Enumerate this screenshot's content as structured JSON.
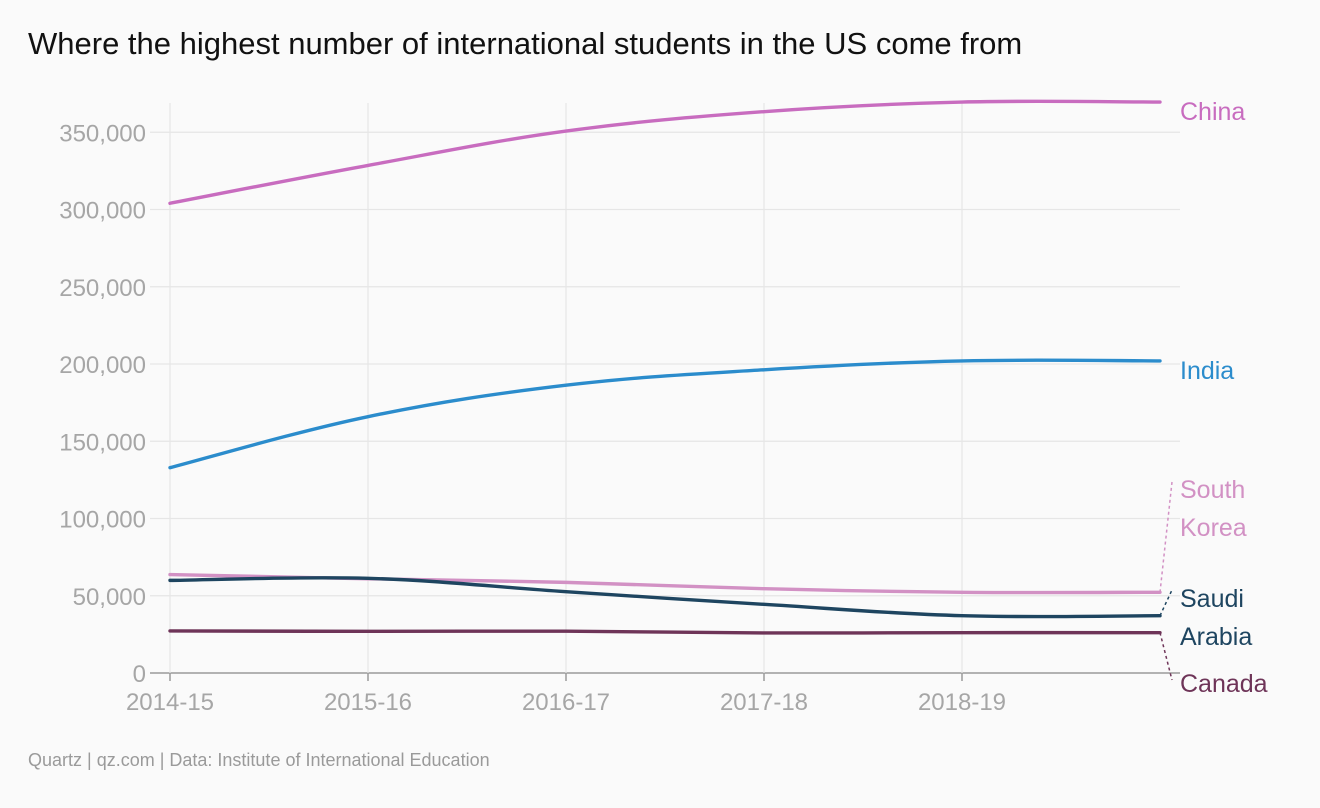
{
  "title": "Where the highest number of international students in the US come from",
  "footer": "Quartz | qz.com | Data: Institute of International Education",
  "chart_data": {
    "type": "line",
    "title": "Where the highest number of international students in the US come from",
    "x": [
      "2014-15",
      "2015-16",
      "2016-17",
      "2017-18",
      "2018-19",
      "2019-20"
    ],
    "xtick_labels": [
      "2014-15",
      "2015-16",
      "2016-17",
      "2017-18",
      "2018-19"
    ],
    "ylim": [
      0,
      370000
    ],
    "yticks": [
      0,
      50000,
      100000,
      150000,
      200000,
      250000,
      300000,
      350000
    ],
    "ytick_labels": [
      "0",
      "50,000",
      "100,000",
      "150,000",
      "200,000",
      "250,000",
      "300,000",
      "350,000"
    ],
    "grid": true,
    "legend": "direct labels at right end of lines",
    "series": [
      {
        "name": "China",
        "label_lines": [
          "China"
        ],
        "color": "#c86cbf",
        "values": [
          304040,
          328547,
          350755,
          363341,
          369548,
          369548
        ],
        "label_style": "direct"
      },
      {
        "name": "India",
        "label_lines": [
          "India"
        ],
        "color": "#2b8ccc",
        "values": [
          132888,
          165918,
          186267,
          196271,
          202014,
          202014
        ],
        "label_style": "direct"
      },
      {
        "name": "South Korea",
        "label_lines": [
          "South",
          "Korea"
        ],
        "color": "#d291c4",
        "values": [
          63710,
          61007,
          58663,
          54555,
          52250,
          52250
        ],
        "label_style": "leader"
      },
      {
        "name": "Saudi Arabia",
        "label_lines": [
          "Saudi",
          "Arabia"
        ],
        "color": "#1e4560",
        "values": [
          59945,
          61287,
          52611,
          44432,
          37080,
          37080
        ],
        "label_style": "leader"
      },
      {
        "name": "Canada",
        "label_lines": [
          "Canada"
        ],
        "color": "#6e3458",
        "values": [
          27240,
          26973,
          27065,
          25909,
          26122,
          26122
        ],
        "label_style": "leader"
      }
    ]
  }
}
